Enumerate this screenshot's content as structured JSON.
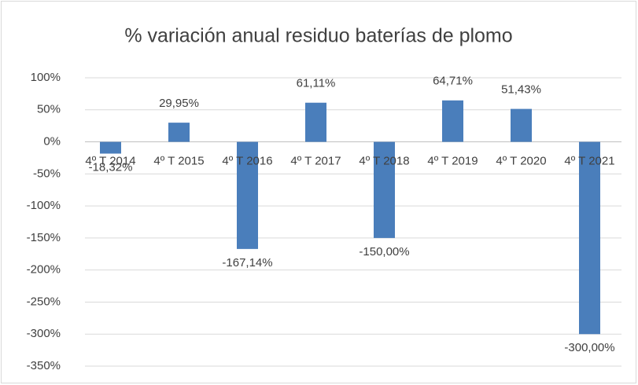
{
  "chart_data": {
    "type": "bar",
    "title": "% variación anual residuo baterías de plomo",
    "categories": [
      "4º T 2014",
      "4º T 2015",
      "4º T 2016",
      "4º T 2017",
      "4º T 2018",
      "4º T 2019",
      "4º T 2020",
      "4º T 2021"
    ],
    "values": [
      -18.32,
      29.95,
      -167.14,
      61.11,
      -150.0,
      64.71,
      51.43,
      -300.0
    ],
    "value_labels": [
      "-18,32%",
      "29,95%",
      "-167,14%",
      "61,11%",
      "-150,00%",
      "64,71%",
      "51,43%",
      "-300,00%"
    ],
    "color": "#4a7ebb",
    "ylim": [
      -350,
      100
    ],
    "yticks": [
      {
        "value": -350,
        "label": "-350%"
      },
      {
        "value": -300,
        "label": "-300%"
      },
      {
        "value": -250,
        "label": "-250%"
      },
      {
        "value": -200,
        "label": "-200%"
      },
      {
        "value": -150,
        "label": "-150%"
      },
      {
        "value": -100,
        "label": "-100%"
      },
      {
        "value": -50,
        "label": "-50%"
      },
      {
        "value": 0,
        "label": "0%"
      },
      {
        "value": 50,
        "label": "50%"
      },
      {
        "value": 100,
        "label": "100%"
      }
    ],
    "grid": true
  }
}
